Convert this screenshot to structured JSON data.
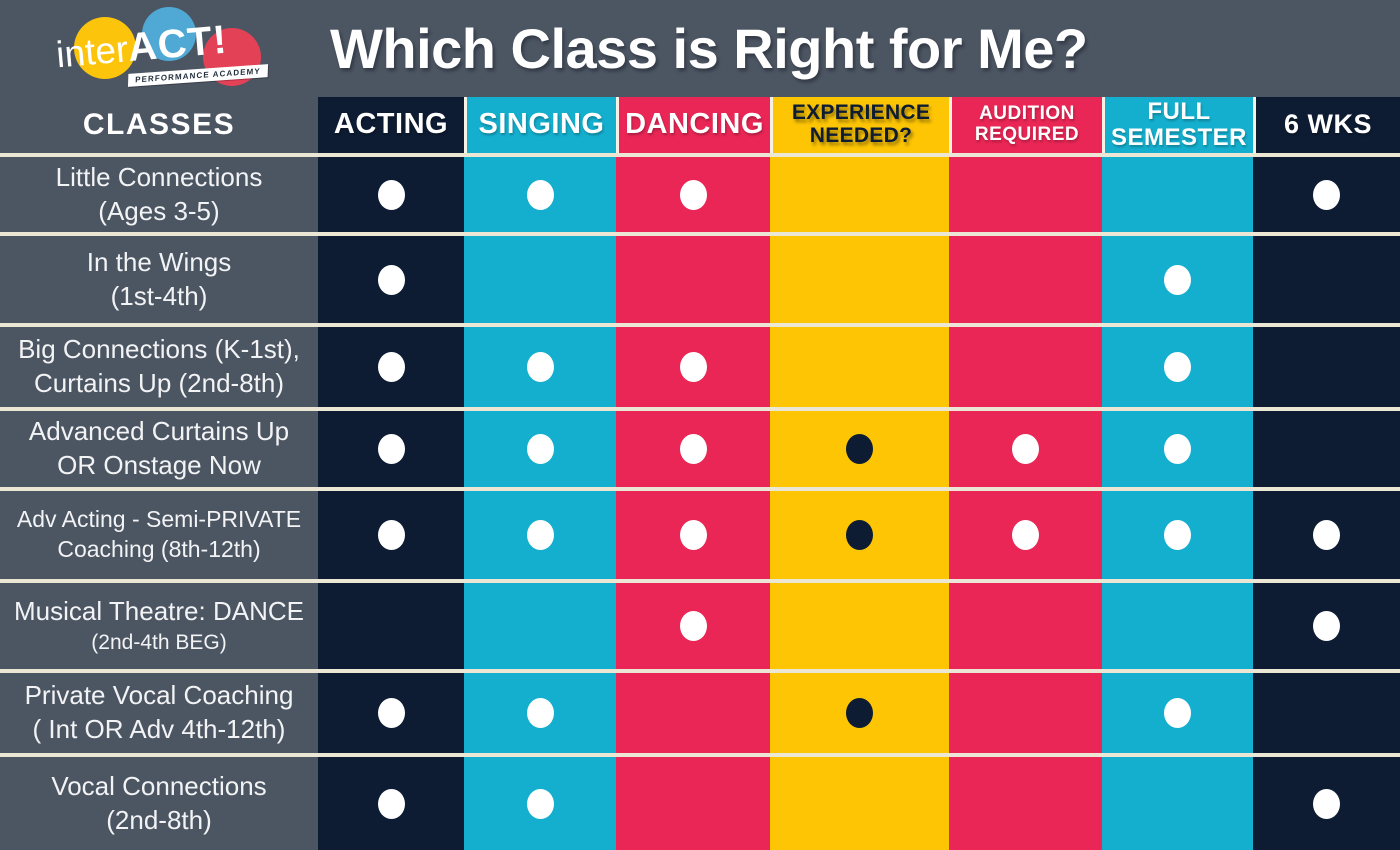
{
  "page": {
    "title": "Which Class is Right for Me?"
  },
  "logo": {
    "name_inter": "inter",
    "name_act": "ACT!",
    "tagline": "PERFORMANCE ACADEMY"
  },
  "table": {
    "classes_header": "CLASSES",
    "columns": [
      {
        "id": "acting",
        "label": "ACTING",
        "color": "#0d1c33",
        "text": "#ffffff"
      },
      {
        "id": "singing",
        "label": "SINGING",
        "color": "#14afce",
        "text": "#ffffff"
      },
      {
        "id": "dancing",
        "label": "DANCING",
        "color": "#e92655",
        "text": "#ffffff"
      },
      {
        "id": "experience",
        "label": "EXPERIENCE NEEDED?",
        "color": "#fdc504",
        "text": "#0e1c33"
      },
      {
        "id": "audition",
        "label": "AUDITION REQUIRED",
        "color": "#e92655",
        "text": "#ffffff"
      },
      {
        "id": "full_semester",
        "label": "FULL SEMESTER",
        "color": "#14afce",
        "text": "#ffffff"
      },
      {
        "id": "six_weeks",
        "label": "6 WKS",
        "color": "#0d1c33",
        "text": "#ffffff"
      }
    ],
    "rows": [
      {
        "name": "Little Connections",
        "detail": "(Ages 3-5)",
        "marks": [
          "white",
          "white",
          "white",
          "none",
          "none",
          "none",
          "white"
        ]
      },
      {
        "name": "In the Wings",
        "detail": "(1st-4th)",
        "marks": [
          "white",
          "none",
          "none",
          "none",
          "none",
          "white",
          "none"
        ]
      },
      {
        "name": "Big Connections (K-1st),",
        "detail": "Curtains Up (2nd-8th)",
        "marks": [
          "white",
          "white",
          "white",
          "none",
          "none",
          "white",
          "none"
        ]
      },
      {
        "name": "Advanced Curtains Up",
        "detail": "OR Onstage Now",
        "marks": [
          "white",
          "white",
          "white",
          "dark",
          "white",
          "white",
          "none"
        ]
      },
      {
        "name": "Adv Acting - Semi-PRIVATE",
        "detail": "Coaching (8th-12th)",
        "marks": [
          "white",
          "white",
          "white",
          "dark",
          "white",
          "white",
          "white"
        ]
      },
      {
        "name": "Musical Theatre: DANCE",
        "detail": "(2nd-4th BEG)",
        "marks": [
          "none",
          "none",
          "white",
          "none",
          "none",
          "none",
          "white"
        ]
      },
      {
        "name": "Private Vocal Coaching",
        "detail": "( Int OR Adv 4th-12th)",
        "marks": [
          "white",
          "white",
          "none",
          "dark",
          "none",
          "white",
          "none"
        ]
      },
      {
        "name": "Vocal Connections",
        "detail": "(2nd-8th)",
        "marks": [
          "white",
          "white",
          "none",
          "none",
          "none",
          "none",
          "white"
        ]
      }
    ]
  },
  "colors": {
    "slate": "#4c5562",
    "navy": "#0d1c33",
    "cyan": "#14afce",
    "red": "#e92655",
    "yellow": "#fdc504",
    "divider": "#ece6d4",
    "header_sep": "#f5f1e4",
    "dot_white": "#ffffff",
    "dot_dark": "#0e1c33",
    "label_text": "#f2f3f5"
  },
  "chart_data": {
    "type": "table",
    "title": "Which Class is Right for Me?",
    "columns": [
      "CLASSES",
      "ACTING",
      "SINGING",
      "DANCING",
      "EXPERIENCE NEEDED?",
      "AUDITION REQUIRED",
      "FULL SEMESTER",
      "6 WKS"
    ],
    "rows": [
      [
        "Little Connections (Ages 3-5)",
        true,
        true,
        true,
        false,
        false,
        false,
        true
      ],
      [
        "In the Wings (1st-4th)",
        true,
        false,
        false,
        false,
        false,
        true,
        false
      ],
      [
        "Big Connections (K-1st), Curtains Up (2nd-8th)",
        true,
        true,
        true,
        false,
        false,
        true,
        false
      ],
      [
        "Advanced Curtains Up OR Onstage Now",
        true,
        true,
        true,
        true,
        true,
        true,
        false
      ],
      [
        "Adv Acting - Semi-PRIVATE Coaching (8th-12th)",
        true,
        true,
        true,
        true,
        true,
        true,
        true
      ],
      [
        "Musical Theatre: DANCE (2nd-4th BEG)",
        false,
        false,
        true,
        false,
        false,
        false,
        true
      ],
      [
        "Private Vocal Coaching ( Int OR Adv 4th-12th)",
        true,
        true,
        false,
        true,
        false,
        true,
        false
      ],
      [
        "Vocal Connections (2nd-8th)",
        true,
        true,
        false,
        false,
        false,
        false,
        true
      ]
    ],
    "legend_note": "true = dot shown in that column for the class row"
  }
}
